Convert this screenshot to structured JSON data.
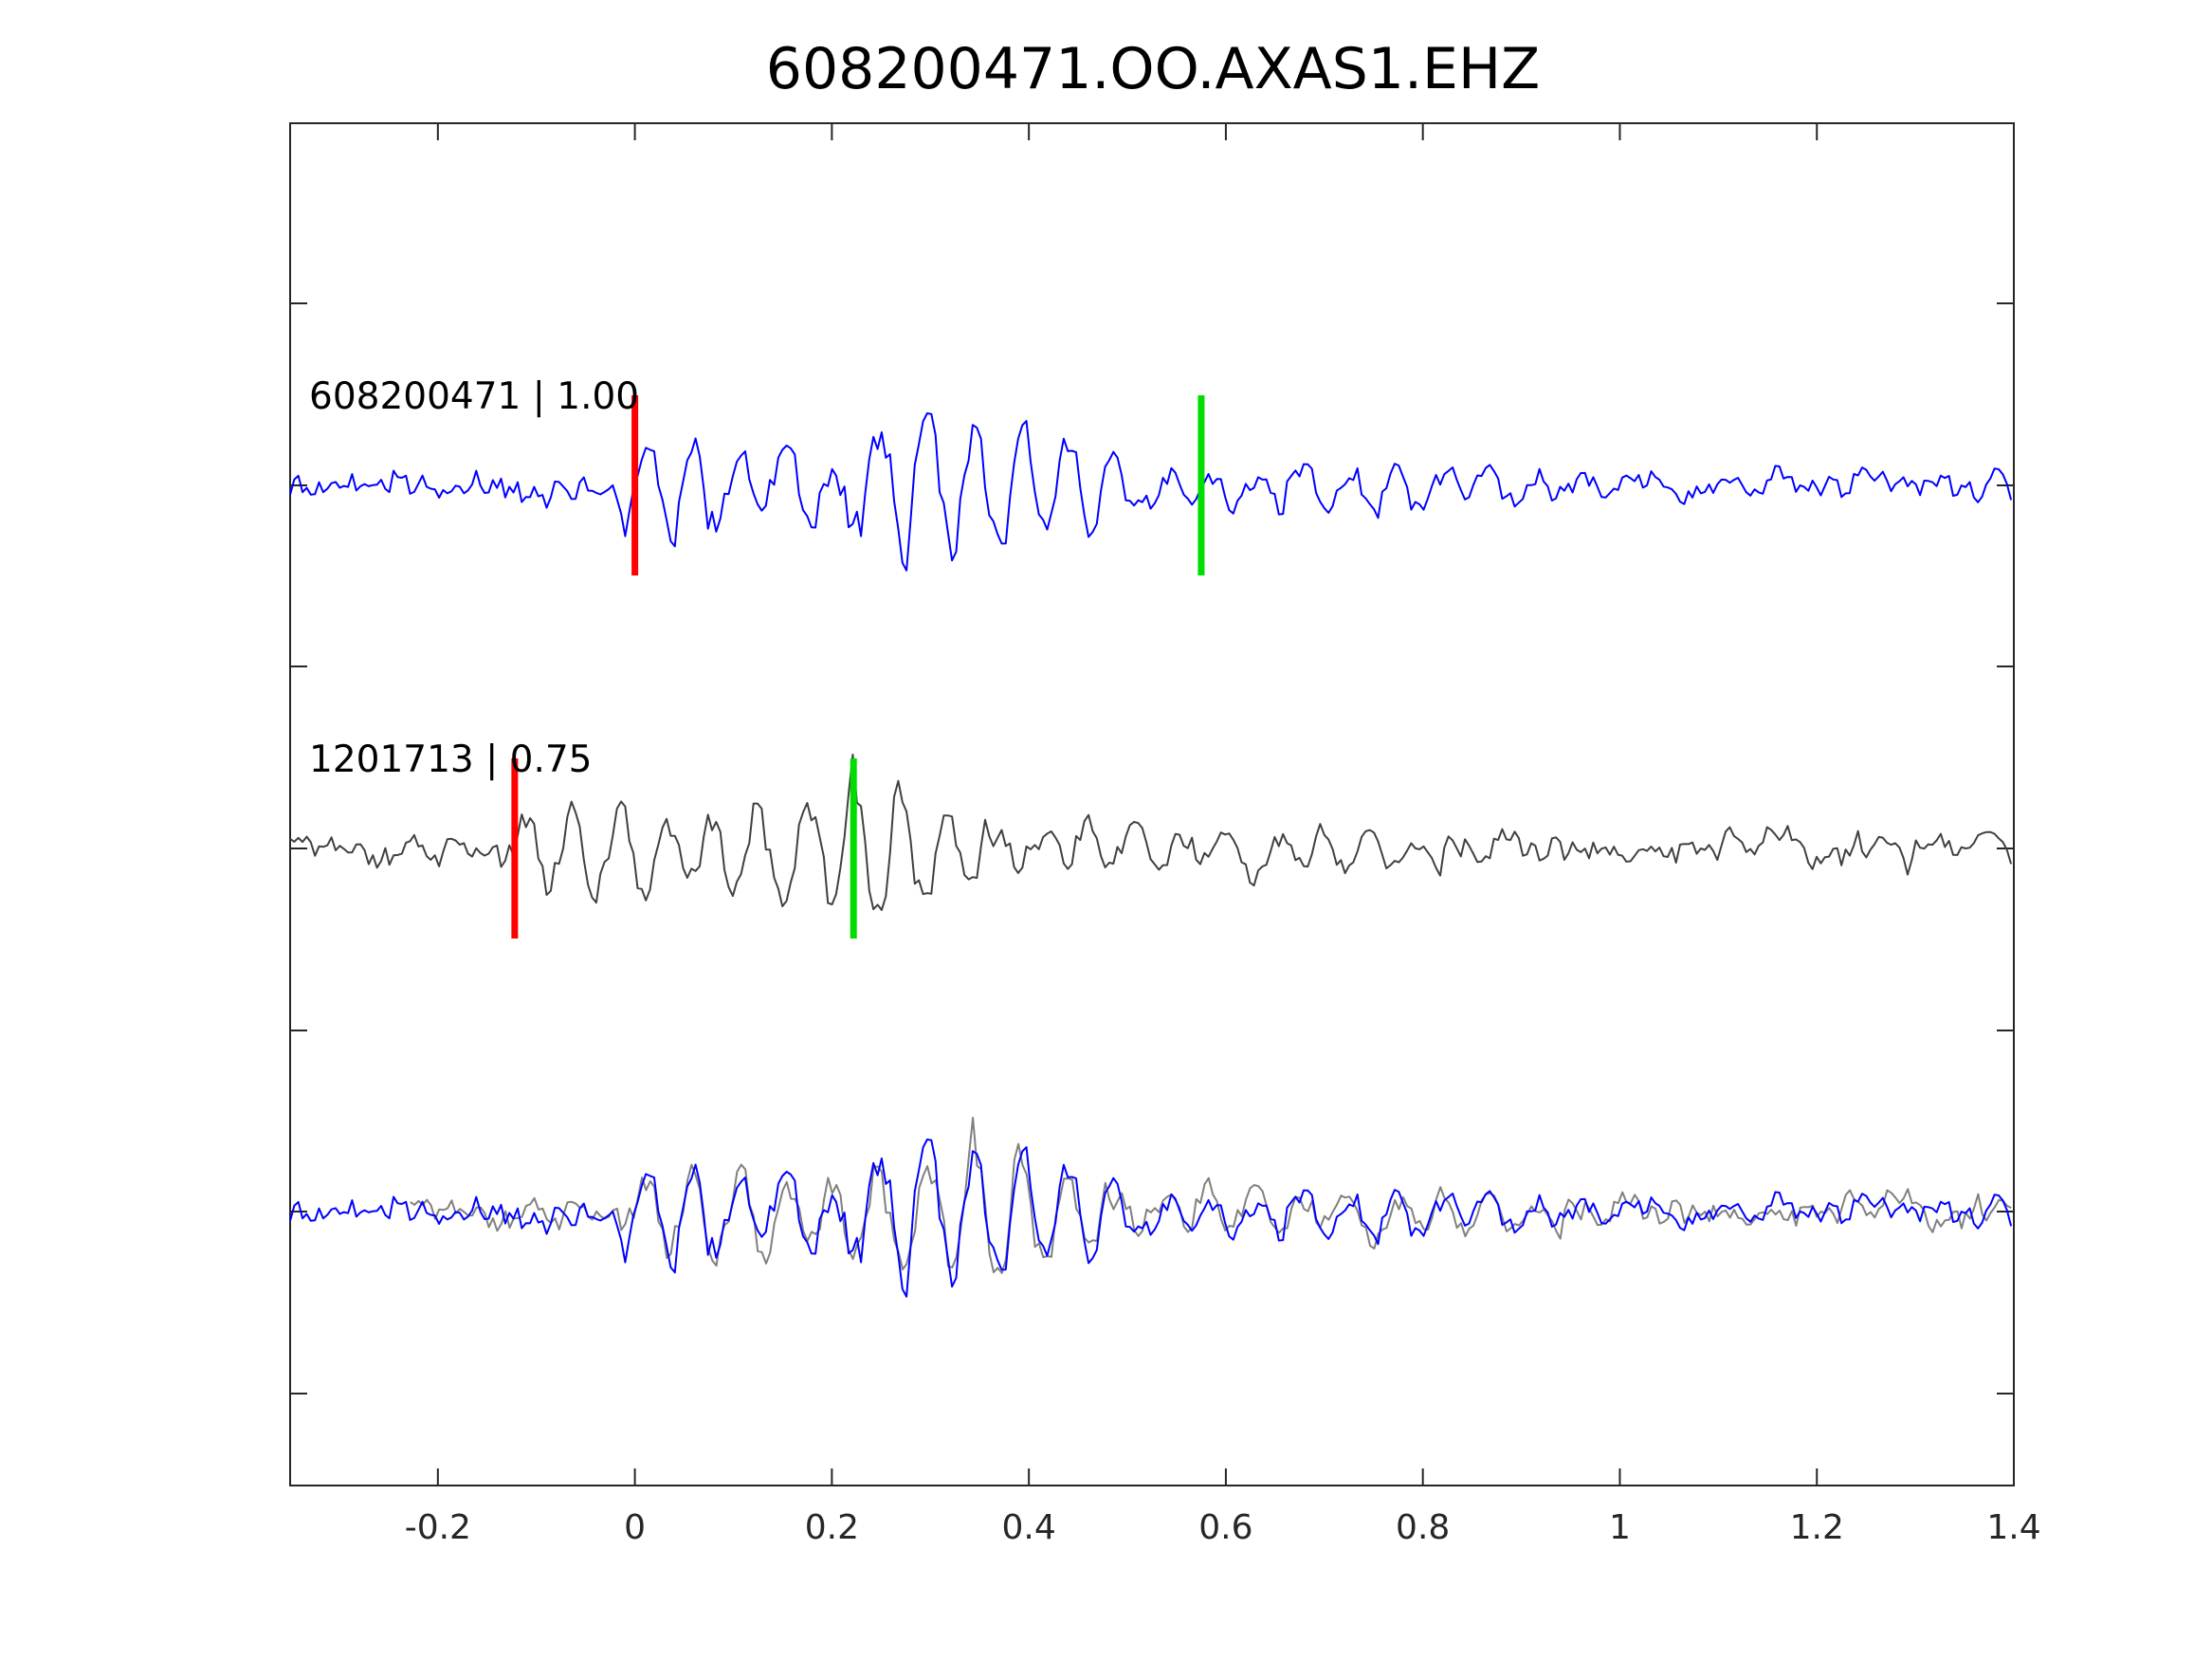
{
  "chart_data": {
    "type": "line",
    "title": "608200471.OO.AXAS1.EHZ",
    "xlabel": "",
    "ylabel": "",
    "xlim": [
      -0.35,
      1.4
    ],
    "xticks": [
      -0.2,
      0,
      0.2,
      0.4,
      0.6,
      0.8,
      1,
      1.2,
      1.4
    ],
    "xtick_labels": [
      "-0.2",
      "0",
      "0.2",
      "0.4",
      "0.6",
      "0.8",
      "1",
      "1.2",
      "1.4"
    ],
    "grid": false,
    "legend": "none",
    "colors": {
      "master": "#0000ff",
      "neighbor": "#404040",
      "neighbor_overlay": "#808080",
      "p_pick": "#ff0000",
      "s_pick": "#00dd00",
      "axis": "#262626"
    },
    "traces": [
      {
        "label": "608200471 | 1.00",
        "p_pick": 0.0,
        "s_pick": 0.575
      },
      {
        "label": "1201713 | 0.75",
        "p_pick": -0.122,
        "s_pick": 0.222
      }
    ]
  }
}
